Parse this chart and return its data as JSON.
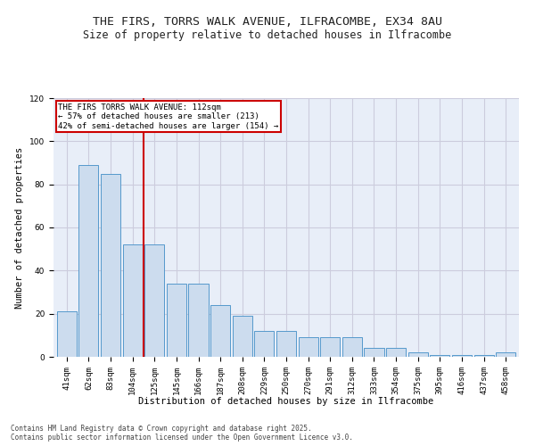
{
  "title_line1": "THE FIRS, TORRS WALK AVENUE, ILFRACOMBE, EX34 8AU",
  "title_line2": "Size of property relative to detached houses in Ilfracombe",
  "xlabel": "Distribution of detached houses by size in Ilfracombe",
  "ylabel": "Number of detached properties",
  "categories": [
    "41sqm",
    "62sqm",
    "83sqm",
    "104sqm",
    "125sqm",
    "145sqm",
    "166sqm",
    "187sqm",
    "208sqm",
    "229sqm",
    "250sqm",
    "270sqm",
    "291sqm",
    "312sqm",
    "333sqm",
    "354sqm",
    "375sqm",
    "395sqm",
    "416sqm",
    "437sqm",
    "458sqm"
  ],
  "values": [
    21,
    89,
    85,
    52,
    52,
    34,
    34,
    24,
    19,
    12,
    12,
    9,
    9,
    9,
    4,
    4,
    2,
    1,
    1,
    1,
    2
  ],
  "bar_color": "#ccdcee",
  "bar_edge_color": "#5599cc",
  "annotation_text": "THE FIRS TORRS WALK AVENUE: 112sqm\n← 57% of detached houses are smaller (213)\n42% of semi-detached houses are larger (154) →",
  "vline_x": 3.5,
  "vline_color": "#cc0000",
  "annotation_box_color": "#cc0000",
  "ylim": [
    0,
    120
  ],
  "yticks": [
    0,
    20,
    40,
    60,
    80,
    100,
    120
  ],
  "grid_color": "#ccccdd",
  "background_color": "#e8eef8",
  "footer_line1": "Contains HM Land Registry data © Crown copyright and database right 2025.",
  "footer_line2": "Contains public sector information licensed under the Open Government Licence v3.0.",
  "title_fontsize": 9.5,
  "subtitle_fontsize": 8.5,
  "axis_label_fontsize": 7.5,
  "tick_fontsize": 6.5,
  "annotation_fontsize": 6.5,
  "footer_fontsize": 5.5
}
